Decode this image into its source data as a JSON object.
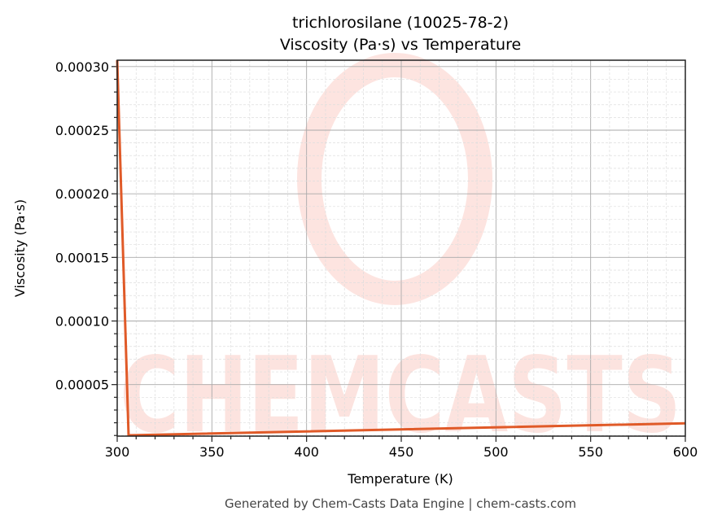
{
  "chart_data": {
    "type": "line",
    "title": "trichlorosilane (10025-78-2)",
    "subtitle": "Viscosity (Pa·s) vs Temperature",
    "xlabel": "Temperature (K)",
    "ylabel": "Viscosity (Pa·s)",
    "xlim": [
      300,
      600
    ],
    "ylim": [
      9.5e-06,
      0.000305
    ],
    "xticks": [
      "300",
      "350",
      "400",
      "450",
      "500",
      "550",
      "600"
    ],
    "yticks": [
      "0.00005",
      "0.00010",
      "0.00015",
      "0.00020",
      "0.00025",
      "0.00030"
    ],
    "grid": true,
    "series": [
      {
        "color": "#e05a28",
        "x": [
          300,
          306,
          600
        ],
        "y": [
          0.000305,
          9.8e-06,
          1.96e-05
        ]
      }
    ]
  },
  "watermark": "CHEMCASTS",
  "footer": "Generated by Chem-Casts Data Engine | chem-casts.com"
}
